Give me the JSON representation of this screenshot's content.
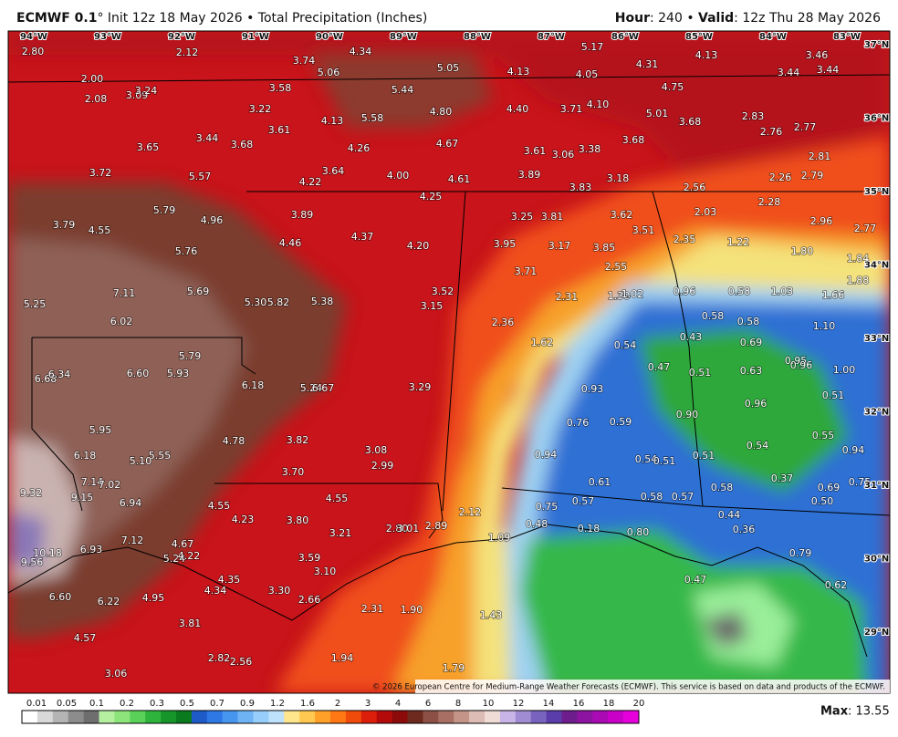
{
  "header": {
    "model": "ECMWF 0.1",
    "degree": "°",
    "subtitle": "Init 12z 18 May 2026 • Total Precipitation (Inches)",
    "hour_label": "Hour",
    "hour": ": 240 • ",
    "valid_label": "Valid",
    "valid": ": 12z Thu 28 May 2026"
  },
  "map": {
    "lat_labels": [
      "37°N",
      "36°N",
      "35°N",
      "34°N",
      "33°N",
      "32°N",
      "31°N",
      "30°N",
      "29°N"
    ],
    "lon_labels": [
      "94°W",
      "93°W",
      "92°W",
      "91°W",
      "90°W",
      "89°W",
      "88°W",
      "87°W",
      "86°W",
      "85°W",
      "84°W",
      "83°W"
    ],
    "values": [
      "2.80",
      "2.12",
      "3.74",
      "4.34",
      "5.06",
      "5.05",
      "4.13",
      "4.05",
      "5.17",
      "4.31",
      "4.13",
      "3.46",
      "3.44",
      "3.44",
      "2.00",
      "2.08",
      "3.09",
      "3.24",
      "3.58",
      "5.44",
      "4.75",
      "3.22",
      "4.13",
      "5.58",
      "4.80",
      "4.40",
      "3.71",
      "4.10",
      "5.01",
      "3.68",
      "2.83",
      "2.76",
      "2.77",
      "3.65",
      "3.44",
      "3.68",
      "3.61",
      "4.26",
      "4.67",
      "3.61",
      "3.06",
      "3.38",
      "3.68",
      "2.81",
      "3.72",
      "5.57",
      "3.64",
      "4.00",
      "4.61",
      "3.89",
      "3.18",
      "2.26",
      "2.79",
      "4.22",
      "3.83",
      "2.56",
      "4.25",
      "2.28",
      "3.79",
      "5.79",
      "4.96",
      "3.89",
      "3.25",
      "3.81",
      "3.62",
      "2.03",
      "2.96",
      "2.77",
      "4.55",
      "4.46",
      "4.37",
      "4.20",
      "3.95",
      "3.17",
      "3.85",
      "3.51",
      "2.35",
      "1.22",
      "1.80",
      "5.76",
      "2.55",
      "3.71",
      "1.84",
      "7.11",
      "5.69",
      "5.30",
      "5.82",
      "5.38",
      "3.52",
      "3.15",
      "2.31",
      "1.30",
      "1.02",
      "0.96",
      "0.58",
      "1.03",
      "1.66",
      "1.88",
      "5.25",
      "6.02",
      "2.36",
      "0.58",
      "0.58",
      "1.10",
      "1.62",
      "0.54",
      "0.43",
      "0.69",
      "0.95",
      "0.96",
      "5.79",
      "6.68",
      "6.34",
      "6.60",
      "5.93",
      "0.47",
      "0.51",
      "0.63",
      "1.00",
      "6.18",
      "5.24",
      "6.67",
      "3.29",
      "0.93",
      "0.51",
      "0.96",
      "0.76",
      "0.59",
      "0.90",
      "5.95",
      "4.78",
      "3.82",
      "0.55",
      "6.18",
      "5.55",
      "5.10",
      "3.08",
      "0.94",
      "0.54",
      "0.51",
      "0.54",
      "0.51",
      "0.94",
      "2.99",
      "3.70",
      "0.61",
      "0.37",
      "0.75",
      "0.69",
      "7.14",
      "7.02",
      "9.32",
      "9.15",
      "6.94",
      "4.55",
      "4.55",
      "0.58",
      "0.57",
      "0.58",
      "0.50",
      "4.23",
      "3.80",
      "2.12",
      "0.75",
      "0.57",
      "0.44",
      "2.80",
      "3.01",
      "2.89",
      "3.21",
      "0.48",
      "0.18",
      "0.80",
      "0.36",
      "1.09",
      "7.12",
      "4.67",
      "6.93",
      "10.18",
      "9.56",
      "5.24",
      "4.22",
      "3.59",
      "3.10",
      "0.79",
      "4.35",
      "4.34",
      "3.30",
      "2.66",
      "0.47",
      "0.62",
      "6.60",
      "6.22",
      "4.95",
      "2.31",
      "1.90",
      "1.43",
      "3.81",
      "4.57",
      "2.82",
      "2.56",
      "1.94",
      "3.06",
      "1.79"
    ],
    "copyright": "© 2026 European Centre for Medium-Range Weather Forecasts (ECMWF). This service is based on data and products of the ECMWF."
  },
  "legend": {
    "labels": [
      "0.01",
      "0.05",
      "0.1",
      "0.2",
      "0.3",
      "0.5",
      "0.7",
      "0.9",
      "1.2",
      "1.6",
      "2",
      "3",
      "4",
      "6",
      "8",
      "10",
      "12",
      "14",
      "16",
      "18",
      "20"
    ]
  },
  "max": {
    "label": "Max",
    "value": ": 13.55"
  }
}
